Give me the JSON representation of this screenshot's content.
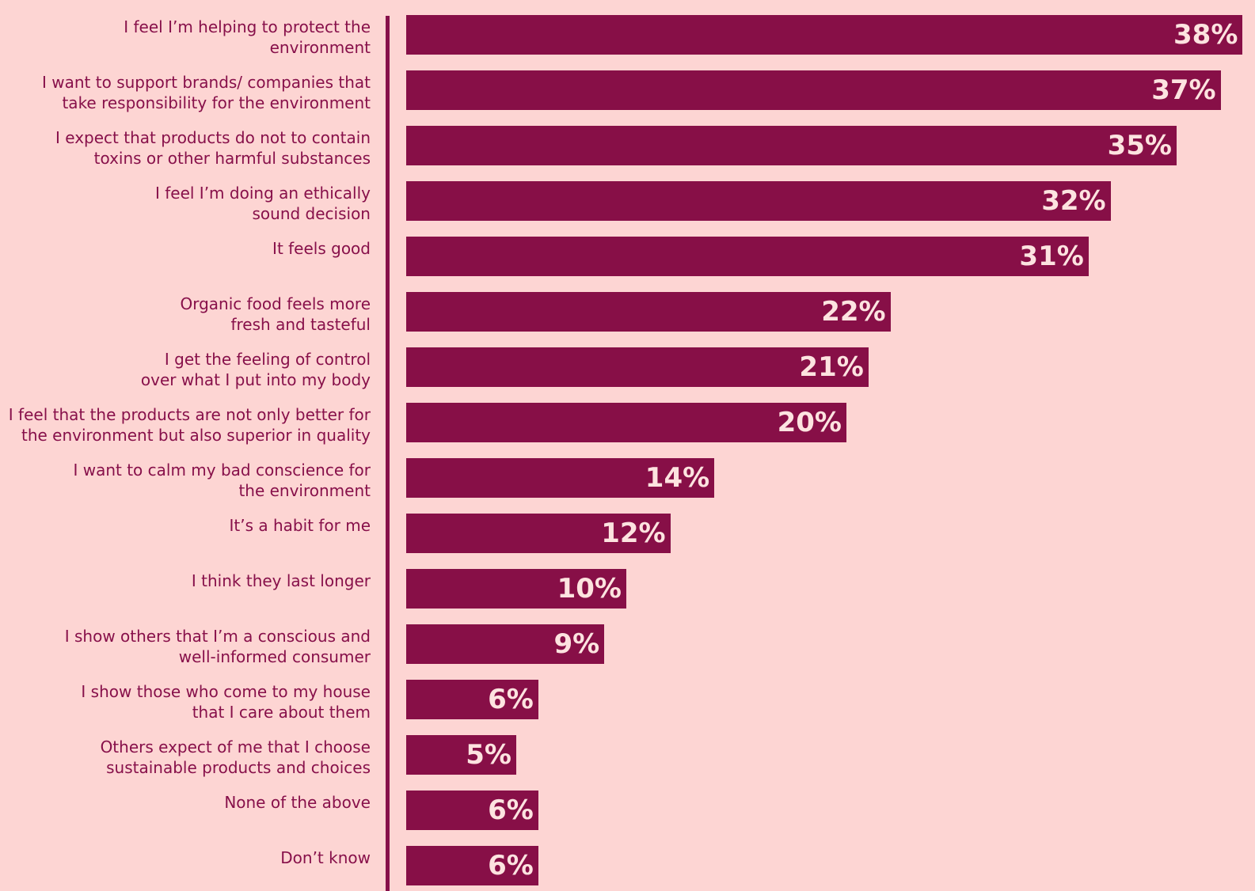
{
  "chart_data": {
    "type": "bar",
    "orientation": "horizontal",
    "color": "#870f47",
    "categories": [
      "I feel I’m helping to protect the\nenvironment",
      "I want to support brands/ companies that\ntake responsibility for the environment",
      "I expect that products do not to contain\ntoxins or other harmful substances",
      "I feel I’m doing an ethically\nsound decision",
      "It feels good",
      "Organic food feels more\nfresh and tasteful",
      "I get the feeling of control\nover what I put into my body",
      "I feel that the products are not only better for\nthe environment but also superior in quality",
      "I want to calm my bad conscience for\nthe environment",
      "It’s a habit for me",
      "I think they last longer",
      "I show others that I’m a conscious and\nwell-informed consumer",
      "I show those who come to my house\nthat I care about them",
      "Others expect of me that I choose\nsustainable products and choices",
      "None of the above",
      "Don’t know"
    ],
    "values": [
      38,
      37,
      35,
      32,
      31,
      22,
      21,
      20,
      14,
      12,
      10,
      9,
      6,
      5,
      6,
      6
    ],
    "value_labels": [
      "38%",
      "37%",
      "35%",
      "32%",
      "31%",
      "22%",
      "21%",
      "20%",
      "14%",
      "12%",
      "10%",
      "9%",
      "6%",
      "5%",
      "6%",
      "6%"
    ]
  }
}
